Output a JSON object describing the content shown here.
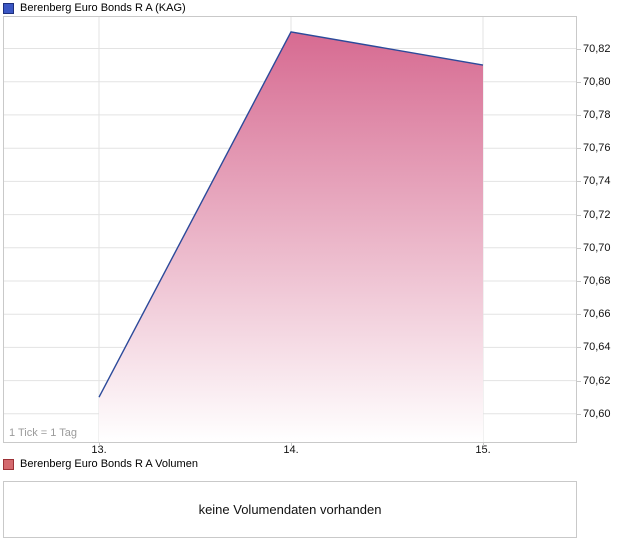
{
  "title_legend": {
    "label": "Berenberg Euro Bonds R A (KAG)",
    "swatch_fill": "#3b57c4",
    "swatch_border": "#1e2f7d"
  },
  "chart_data": {
    "type": "area",
    "title": "Berenberg Euro Bonds R A (KAG)",
    "x_tick_labels": [
      "13.",
      "14.",
      "15."
    ],
    "x": [
      13,
      14,
      15
    ],
    "values": [
      70.61,
      70.83,
      70.81
    ],
    "series_name": "Berenberg Euro Bonds R A (KAG)",
    "xlabel": "",
    "ylabel": "",
    "decimal_format": "comma",
    "ylim": [
      70.583,
      70.839
    ],
    "yticks": [
      70.6,
      70.62,
      70.64,
      70.66,
      70.68,
      70.7,
      70.72,
      70.74,
      70.76,
      70.78,
      70.8,
      70.82
    ],
    "grid": true,
    "legend_position": "top-left",
    "line_color": "#2c4a9a",
    "area_gradient_top": "#d5658d",
    "area_gradient_bottom": "#ffffff",
    "x_unit_note": "1 Tick = 1 Tag"
  },
  "volume_panel": {
    "legend_label": "Berenberg Euro Bonds R A Volumen",
    "swatch_fill": "#d4696e",
    "swatch_border": "#9c3136",
    "message": "keine Volumendaten vorhanden"
  },
  "colors": {
    "grid": "#e3e3e3",
    "plot_border": "#c9c9c9",
    "tick_label": "#111111",
    "note_gray": "#9b9b9b"
  }
}
